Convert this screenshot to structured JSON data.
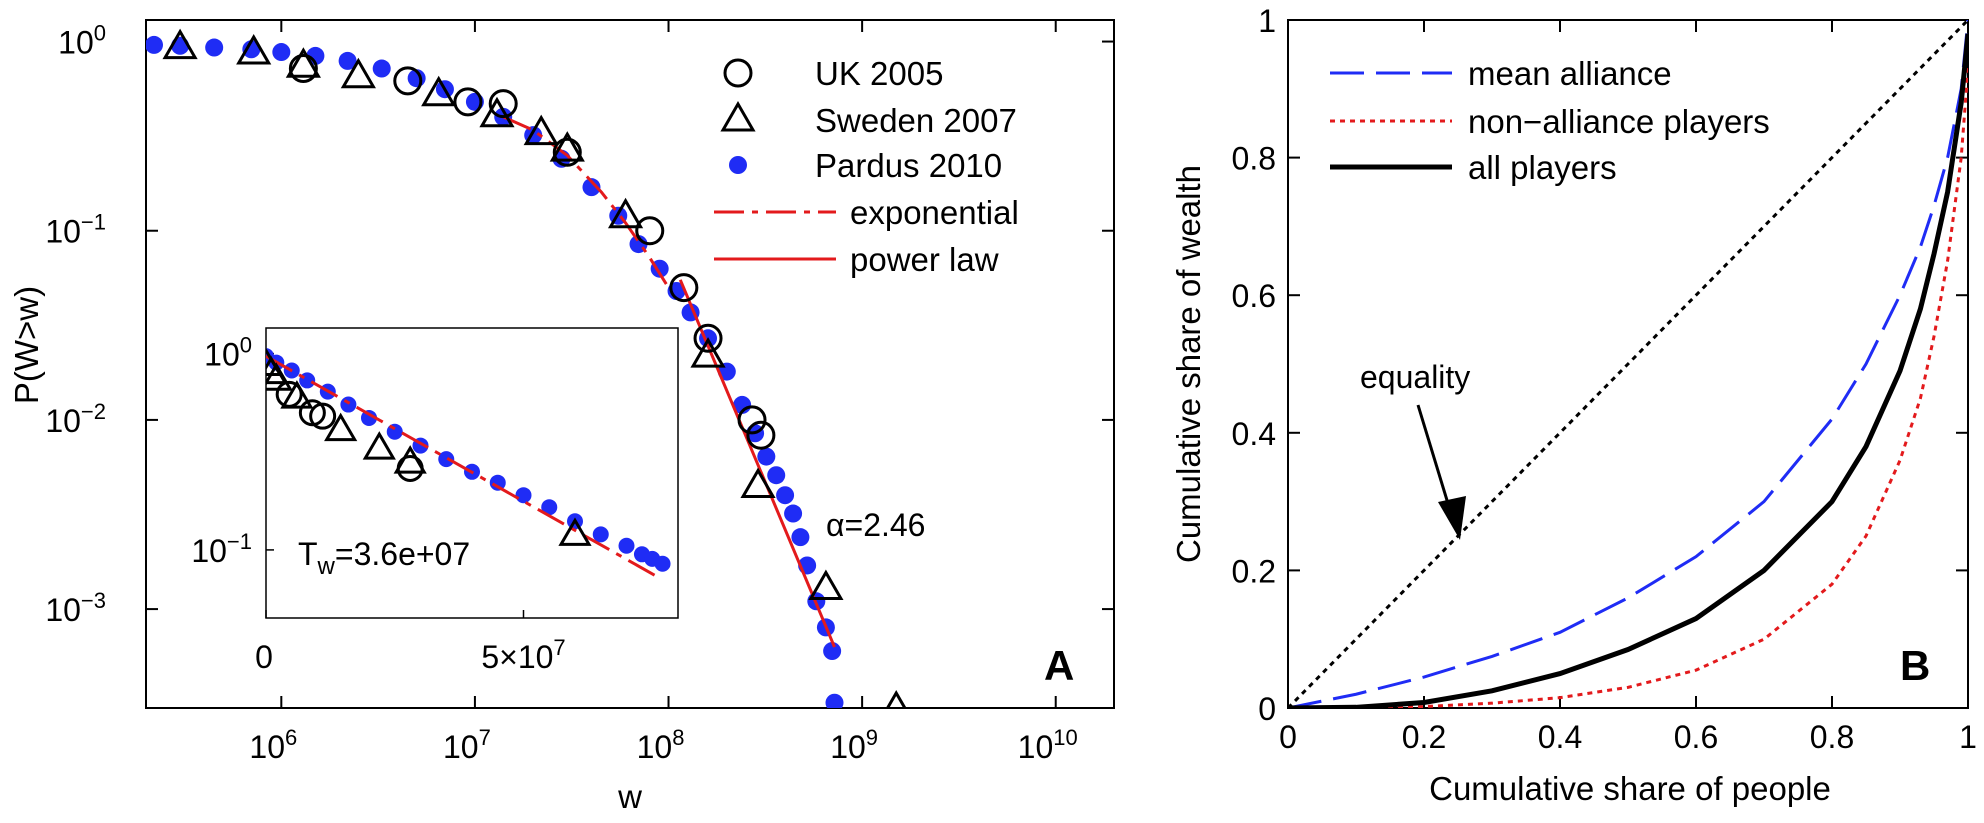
{
  "chart_data": [
    {
      "panel": "A",
      "type": "scatter",
      "scale": "log-log",
      "xlabel": "w",
      "ylabel": "P(W>w)",
      "xlim": [
        200000,
        20000000000
      ],
      "ylim": [
        0.0003,
        1.3
      ],
      "x_ticks": [
        {
          "v": 1000000,
          "b": "10",
          "e": "6"
        },
        {
          "v": 10000000,
          "b": "10",
          "e": "7"
        },
        {
          "v": 100000000,
          "b": "10",
          "e": "8"
        },
        {
          "v": 1000000000,
          "b": "10",
          "e": "9"
        },
        {
          "v": 10000000000,
          "b": "10",
          "e": "10"
        }
      ],
      "y_ticks": [
        {
          "v": 1,
          "b": "10",
          "e": "0"
        },
        {
          "v": 0.1,
          "b": "10",
          "e": "−1"
        },
        {
          "v": 0.01,
          "b": "10",
          "e": "−2"
        },
        {
          "v": 0.001,
          "b": "10",
          "e": "−3"
        }
      ],
      "grid": false,
      "legend_position": "top-right",
      "series": [
        {
          "name": "UK 2005",
          "marker": "open-circle",
          "color": "#000000",
          "x": [
            1300000,
            4500000,
            9200000,
            14000000,
            30000000,
            80000000,
            120000000,
            160000000,
            270000000,
            300000000
          ],
          "y": [
            0.72,
            0.62,
            0.48,
            0.47,
            0.26,
            0.1,
            0.05,
            0.027,
            0.01,
            0.0083
          ]
        },
        {
          "name": "Sweden 2007",
          "marker": "open-triangle",
          "color": "#000000",
          "x": [
            300000,
            720000,
            1300000,
            2500000,
            6500000,
            13000000,
            22000000,
            30000000,
            60000000,
            160000000,
            290000000,
            650000000,
            1500000000
          ],
          "y": [
            0.94,
            0.88,
            0.75,
            0.66,
            0.53,
            0.41,
            0.33,
            0.27,
            0.12,
            0.022,
            0.0045,
            0.0013,
            0.0003
          ]
        },
        {
          "name": "Pardus 2010",
          "marker": "filled-circle",
          "color": "#1f2cf5",
          "x": [
            220000,
            300000,
            450000,
            700000,
            1000000,
            1500000,
            2200000,
            3300000,
            5000000,
            7000000,
            10000000,
            14000000,
            20000000,
            28000000,
            40000000,
            55000000,
            70000000,
            90000000,
            110000000,
            130000000,
            160000000,
            200000000,
            240000000,
            280000000,
            320000000,
            360000000,
            400000000,
            440000000,
            480000000,
            520000000,
            580000000,
            650000000,
            700000000,
            720000000
          ],
          "y": [
            0.96,
            0.95,
            0.93,
            0.91,
            0.88,
            0.84,
            0.79,
            0.72,
            0.64,
            0.56,
            0.48,
            0.4,
            0.32,
            0.24,
            0.17,
            0.12,
            0.085,
            0.063,
            0.048,
            0.037,
            0.027,
            0.018,
            0.012,
            0.0085,
            0.0064,
            0.0051,
            0.004,
            0.0032,
            0.0024,
            0.0017,
            0.0011,
            0.0008,
            0.0006,
            0.00032
          ]
        },
        {
          "name": "exponential",
          "line": "dash-dot",
          "color": "#e31a1c",
          "x": [
            14000000,
            20000000,
            30000000,
            45000000,
            60000000,
            80000000,
            100000000
          ],
          "y": [
            0.4,
            0.34,
            0.25,
            0.16,
            0.11,
            0.072,
            0.05
          ]
        },
        {
          "name": "power law",
          "line": "solid",
          "color": "#e31a1c",
          "x": [
            115000000,
            720000000
          ],
          "y": [
            0.055,
            0.00063
          ]
        }
      ],
      "annotations": [
        {
          "text": "α=2.46",
          "x": 1100000000,
          "y": 0.0025
        }
      ],
      "panel_label": "A",
      "inset": {
        "type": "scatter",
        "scale": "linear-x, log-y",
        "xlim": [
          0,
          80000000
        ],
        "ylim": [
          0.045,
          1.35
        ],
        "x_ticks": [
          {
            "v": 0,
            "label": "0"
          },
          {
            "v": 50000000,
            "label": "5×10",
            "e": "7"
          }
        ],
        "y_ticks": [
          {
            "v": 1,
            "b": "10",
            "e": "0"
          },
          {
            "v": 0.1,
            "b": "10",
            "e": "−1"
          }
        ],
        "annotation": {
          "main": "T",
          "sub": "w",
          "rest": "=3.6e+07"
        },
        "points": {
          "Pardus 2010": {
            "x": [
              0,
              2000000,
              5000000,
              8000000,
              12000000,
              16000000,
              20000000,
              25000000,
              30000000,
              35000000,
              40000000,
              45000000,
              50000000,
              55000000,
              60000000,
              65000000,
              70000000,
              73000000,
              75000000,
              77000000
            ],
            "y": [
              0.97,
              0.9,
              0.82,
              0.73,
              0.64,
              0.55,
              0.47,
              0.4,
              0.34,
              0.29,
              0.25,
              0.22,
              0.19,
              0.165,
              0.14,
              0.12,
              0.105,
              0.095,
              0.09,
              0.085
            ]
          },
          "UK 2005": {
            "x": [
              4500000,
              9000000,
              11000000,
              28000000
            ],
            "y": [
              0.62,
              0.5,
              0.48,
              0.26
            ]
          },
          "Sweden 2007": {
            "x": [
              0,
              1000000,
              2000000,
              6000000,
              14500000,
              22000000,
              28000000,
              60000000
            ],
            "y": [
              0.88,
              0.8,
              0.74,
              0.6,
              0.41,
              0.33,
              0.28,
              0.12
            ]
          },
          "exponential": {
            "x": [
              0,
              76000000
            ],
            "y": [
              0.97,
              0.073
            ]
          }
        }
      }
    },
    {
      "panel": "B",
      "type": "line",
      "xlabel": "Cumulative share of people",
      "ylabel": "Cumulative share of wealth",
      "xlim": [
        0,
        1
      ],
      "ylim": [
        0,
        1
      ],
      "x_ticks": [
        0,
        0.2,
        0.4,
        0.6,
        0.8,
        1
      ],
      "y_ticks": [
        0,
        0.2,
        0.4,
        0.6,
        0.8,
        1
      ],
      "grid": false,
      "legend_position": "top-left",
      "x": [
        0,
        0.1,
        0.2,
        0.3,
        0.4,
        0.5,
        0.6,
        0.7,
        0.8,
        0.85,
        0.9,
        0.93,
        0.95,
        0.97,
        0.99,
        1
      ],
      "series": [
        {
          "name": "mean alliance",
          "line": "long-dash",
          "color": "#1f2cf5",
          "y": [
            0,
            0.02,
            0.045,
            0.075,
            0.11,
            0.16,
            0.22,
            0.3,
            0.42,
            0.5,
            0.6,
            0.67,
            0.73,
            0.8,
            0.9,
            1.0
          ]
        },
        {
          "name": "non−alliance players",
          "line": "dotted",
          "color": "#e31a1c",
          "y": [
            0,
            0.0,
            0.002,
            0.007,
            0.015,
            0.03,
            0.055,
            0.1,
            0.18,
            0.25,
            0.36,
            0.45,
            0.54,
            0.65,
            0.8,
            0.93
          ]
        },
        {
          "name": "all players",
          "line": "solid",
          "color": "#000000",
          "y": [
            0,
            0.001,
            0.008,
            0.025,
            0.05,
            0.085,
            0.13,
            0.2,
            0.3,
            0.38,
            0.49,
            0.58,
            0.66,
            0.75,
            0.88,
            0.98
          ]
        },
        {
          "name": "equality",
          "line": "dotted",
          "color": "#000000",
          "y": [
            0,
            0.1,
            0.2,
            0.3,
            0.4,
            0.5,
            0.6,
            0.7,
            0.8,
            0.85,
            0.9,
            0.93,
            0.95,
            0.97,
            0.99,
            1
          ]
        }
      ],
      "annotations": [
        {
          "text": "equality",
          "arrow_to": [
            0.25,
            0.25
          ]
        }
      ],
      "panel_label": "B"
    }
  ]
}
